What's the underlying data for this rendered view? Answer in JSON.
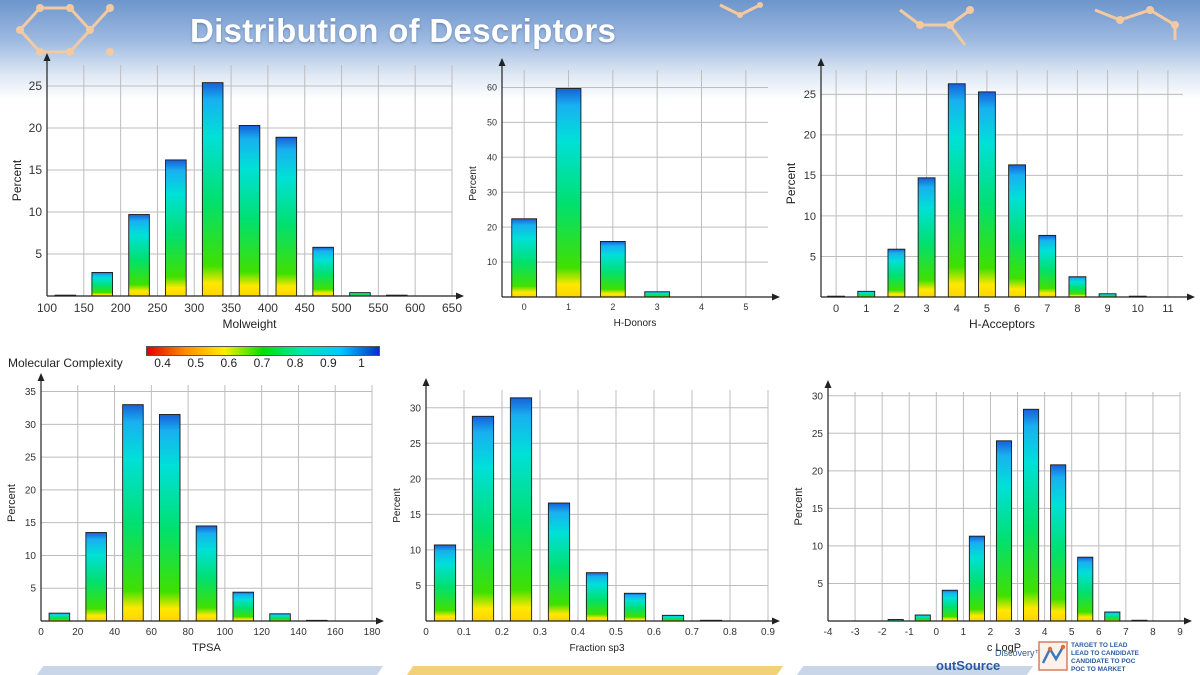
{
  "title": "Distribution of Descriptors",
  "colorbar": {
    "label": "Molecular Complexity",
    "ticks": [
      "0.4",
      "0.5",
      "0.6",
      "0.7",
      "0.8",
      "0.9",
      "1"
    ],
    "range": [
      0.35,
      1.05
    ],
    "colors": [
      "#e00000",
      "#ff8c00",
      "#ffee00",
      "#00e000",
      "#00e8b0",
      "#00c8ff",
      "#0030c8"
    ]
  },
  "brand": {
    "line1": "Discovery™",
    "line2": "outSource",
    "tagline": [
      "Target to Lead",
      "Lead to Candidate",
      "Candidate to PoC",
      "PoC to Market"
    ]
  },
  "chart_data": [
    {
      "type": "bar",
      "xlabel": "Molweight",
      "ylabel": "Percent",
      "xlim": [
        100,
        650
      ],
      "ylim": [
        0,
        27.5
      ],
      "xticks": [
        "100",
        "150",
        "200",
        "250",
        "300",
        "350",
        "400",
        "450",
        "500",
        "550",
        "600",
        "650"
      ],
      "yticks": [
        5,
        10,
        15,
        20,
        25
      ],
      "bin_width": 50,
      "x": [
        125,
        175,
        225,
        275,
        325,
        375,
        425,
        475,
        525,
        575,
        625
      ],
      "values": [
        0.1,
        2.8,
        9.7,
        16.2,
        25.4,
        20.3,
        18.9,
        5.8,
        0.4,
        0.1,
        0
      ],
      "grid": true
    },
    {
      "type": "bar",
      "xlabel": "H-Donors",
      "ylabel": "Percent",
      "xlim": [
        -0.5,
        5.5
      ],
      "ylim": [
        0,
        65
      ],
      "xticks": [
        "0",
        "1",
        "2",
        "3",
        "4",
        "5"
      ],
      "yticks": [
        10,
        20,
        30,
        40,
        50,
        60
      ],
      "bin_width": 1,
      "x": [
        0,
        1,
        2,
        3,
        4,
        5
      ],
      "values": [
        22.4,
        59.7,
        15.9,
        1.5,
        0,
        0
      ],
      "grid": true
    },
    {
      "type": "bar",
      "xlabel": "H-Acceptors",
      "ylabel": "Percent",
      "xlim": [
        -0.5,
        11.5
      ],
      "ylim": [
        0,
        28
      ],
      "xticks": [
        "0",
        "1",
        "2",
        "3",
        "4",
        "5",
        "6",
        "7",
        "8",
        "9",
        "10",
        "11"
      ],
      "yticks": [
        5,
        10,
        15,
        20,
        25
      ],
      "bin_width": 1,
      "x": [
        0,
        1,
        2,
        3,
        4,
        5,
        6,
        7,
        8,
        9,
        10,
        11
      ],
      "values": [
        0.1,
        0.7,
        5.9,
        14.7,
        26.3,
        25.3,
        16.3,
        7.6,
        2.5,
        0.4,
        0.1,
        0
      ],
      "grid": true
    },
    {
      "type": "bar",
      "xlabel": "TPSA",
      "ylabel": "Percent",
      "xlim": [
        0,
        180
      ],
      "ylim": [
        0,
        36
      ],
      "xticks": [
        "0",
        "20",
        "40",
        "60",
        "80",
        "100",
        "120",
        "140",
        "160",
        "180"
      ],
      "yticks": [
        5,
        10,
        15,
        20,
        25,
        30,
        35
      ],
      "bin_width": 20,
      "x": [
        10,
        30,
        50,
        70,
        90,
        110,
        130,
        150,
        170
      ],
      "values": [
        1.2,
        13.5,
        33,
        31.5,
        14.5,
        4.4,
        1.1,
        0.1,
        0
      ],
      "grid": true
    },
    {
      "type": "bar",
      "xlabel": "Fraction sp3",
      "ylabel": "Percent",
      "xlim": [
        0,
        0.9
      ],
      "ylim": [
        0,
        32.5
      ],
      "xticks": [
        "0",
        "0.1",
        "0.2",
        "0.3",
        "0.4",
        "0.5",
        "0.6",
        "0.7",
        "0.8",
        "0.9"
      ],
      "yticks": [
        5,
        10,
        15,
        20,
        25,
        30
      ],
      "bin_width": 0.1,
      "x": [
        0.05,
        0.15,
        0.25,
        0.35,
        0.45,
        0.55,
        0.65,
        0.75,
        0.85
      ],
      "values": [
        10.7,
        28.8,
        31.4,
        16.6,
        6.8,
        3.9,
        0.8,
        0.1,
        0
      ],
      "grid": true
    },
    {
      "type": "bar",
      "xlabel": "c LogP",
      "ylabel": "Percent",
      "xlim": [
        -4,
        9
      ],
      "ylim": [
        0,
        30.5
      ],
      "xticks": [
        "-4",
        "-3",
        "-2",
        "-1",
        "0",
        "1",
        "2",
        "3",
        "4",
        "5",
        "6",
        "7",
        "8",
        "9"
      ],
      "yticks": [
        5,
        10,
        15,
        20,
        25,
        30
      ],
      "bin_width": 1,
      "x": [
        -3.5,
        -2.5,
        -1.5,
        -0.5,
        0.5,
        1.5,
        2.5,
        3.5,
        4.5,
        5.5,
        6.5,
        7.5,
        8.5
      ],
      "values": [
        0,
        0,
        0.2,
        0.8,
        4.1,
        11.3,
        24,
        28.2,
        20.8,
        8.5,
        1.2,
        0.1,
        0
      ],
      "grid": true
    }
  ]
}
